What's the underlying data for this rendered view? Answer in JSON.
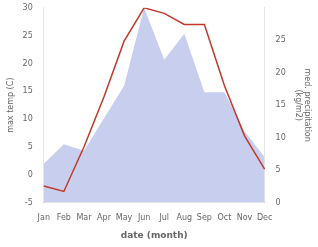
{
  "chart_data": {
    "type": "line",
    "xlabel": "date (month)",
    "ylabel": "max temp (C)",
    "y2label": "med. precipitation\n(kg/m2)",
    "categories": [
      "Jan",
      "Feb",
      "Mar",
      "Apr",
      "May",
      "Jun",
      "Jul",
      "Aug",
      "Sep",
      "Oct",
      "Nov",
      "Dec"
    ],
    "series": [
      {
        "type": "area",
        "axis": "y2",
        "color": "#c8cfee",
        "values": [
          6,
          9,
          8,
          13,
          18,
          30,
          22,
          26,
          17,
          17,
          11,
          7
        ]
      },
      {
        "type": "line",
        "color": "#c0392b",
        "values": [
          -2,
          -3,
          5,
          14,
          24,
          30,
          29,
          27,
          27,
          16,
          7,
          1
        ]
      }
    ],
    "ylim": [
      -5,
      30
    ],
    "yticks": [
      -5,
      0,
      5,
      10,
      15,
      20,
      25,
      30
    ],
    "y2lim": [
      0,
      30
    ],
    "y2ticks": [
      0,
      5,
      10,
      15,
      20,
      25
    ],
    "grid": false
  }
}
